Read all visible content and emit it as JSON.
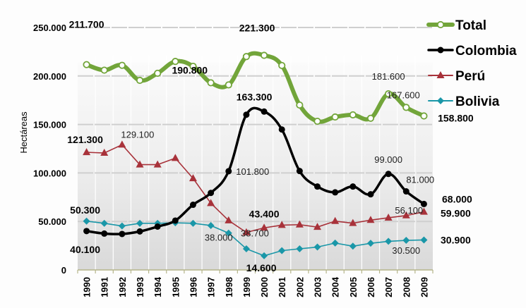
{
  "chart_data": {
    "type": "line",
    "title": "",
    "xlabel": "",
    "ylabel": "Hectáreas",
    "ylim": [
      0,
      250000
    ],
    "yticks": [
      0,
      50000,
      100000,
      150000,
      200000,
      250000
    ],
    "ytick_labels": [
      "0",
      "50.000",
      "100.000",
      "150.000",
      "200.000",
      "250.000"
    ],
    "grid": true,
    "legend_position": "top-right",
    "x": [
      "1990",
      "1991",
      "1992",
      "1993",
      "1994",
      "1995",
      "1996",
      "1997",
      "1998",
      "1999",
      "2000",
      "2001",
      "2002",
      "2003",
      "2004",
      "2005",
      "2006",
      "2007",
      "2008",
      "2009"
    ],
    "series": [
      {
        "name": "Total",
        "color": "#72a53a",
        "marker": "open-circle",
        "smooth": true,
        "values": [
          211700,
          206000,
          211000,
          195500,
          202800,
          215000,
          210000,
          193000,
          190800,
          220000,
          221300,
          210800,
          170000,
          153300,
          157700,
          159900,
          156400,
          181600,
          167600,
          158800
        ]
      },
      {
        "name": "Colombia",
        "color": "#000000",
        "marker": "filled-circle",
        "smooth": true,
        "values": [
          40100,
          37500,
          37100,
          39700,
          44700,
          50900,
          67200,
          79400,
          101800,
          160100,
          163300,
          144800,
          102000,
          86000,
          80000,
          86000,
          78000,
          99000,
          81000,
          68000
        ]
      },
      {
        "name": "Perú",
        "color": "#a8323a",
        "marker": "triangle",
        "smooth": false,
        "values": [
          121300,
          120600,
          129100,
          108600,
          108600,
          115300,
          94400,
          68800,
          51000,
          38700,
          43400,
          46200,
          46700,
          44200,
          50300,
          48200,
          51400,
          53800,
          56100,
          59900
        ]
      },
      {
        "name": "Bolivia",
        "color": "#1a97a8",
        "marker": "diamond",
        "smooth": false,
        "values": [
          50300,
          48100,
          45300,
          48100,
          48100,
          48600,
          48100,
          45800,
          38000,
          21800,
          14600,
          19900,
          21800,
          23600,
          27700,
          24500,
          27500,
          29500,
          30500,
          30900
        ]
      }
    ],
    "annotations": [
      {
        "series": "Total",
        "year": "1990",
        "text": "211.700",
        "style": "bold"
      },
      {
        "series": "Total",
        "year": "1998",
        "text": "190.800",
        "style": "bold"
      },
      {
        "series": "Total",
        "year": "2000",
        "text": "221.300",
        "style": "bold"
      },
      {
        "series": "Total",
        "year": "2007",
        "text": "181.600",
        "style": "regular"
      },
      {
        "series": "Total",
        "year": "2008",
        "text": "167.600",
        "style": "regular"
      },
      {
        "series": "Total",
        "year": "2009",
        "text": "158.800",
        "style": "bold"
      },
      {
        "series": "Colombia",
        "year": "1990",
        "text": "40.100",
        "style": "bold"
      },
      {
        "series": "Colombia",
        "year": "1998",
        "text": "101.800",
        "style": "regular"
      },
      {
        "series": "Colombia",
        "year": "2000",
        "text": "163.300",
        "style": "bold"
      },
      {
        "series": "Colombia",
        "year": "2007",
        "text": "99.000",
        "style": "regular"
      },
      {
        "series": "Colombia",
        "year": "2008",
        "text": "81.000",
        "style": "regular"
      },
      {
        "series": "Colombia",
        "year": "2009",
        "text": "68.000",
        "style": "bold"
      },
      {
        "series": "Perú",
        "year": "1990",
        "text": "121.300",
        "style": "bold"
      },
      {
        "series": "Perú",
        "year": "1992",
        "text": "129.100",
        "style": "regular"
      },
      {
        "series": "Perú",
        "year": "1999",
        "text": "38.700",
        "style": "regular"
      },
      {
        "series": "Perú",
        "year": "2000",
        "text": "43.400",
        "style": "bold"
      },
      {
        "series": "Perú",
        "year": "2008",
        "text": "56.100",
        "style": "regular"
      },
      {
        "series": "Perú",
        "year": "2009",
        "text": "59.900",
        "style": "bold"
      },
      {
        "series": "Bolivia",
        "year": "1990",
        "text": "50.300",
        "style": "bold"
      },
      {
        "series": "Bolivia",
        "year": "1998",
        "text": "38.000",
        "style": "regular"
      },
      {
        "series": "Bolivia",
        "year": "2000",
        "text": "14.600",
        "style": "bold"
      },
      {
        "series": "Bolivia",
        "year": "2008",
        "text": "30.500",
        "style": "regular"
      },
      {
        "series": "Bolivia",
        "year": "2009",
        "text": "30.900",
        "style": "bold"
      }
    ]
  }
}
